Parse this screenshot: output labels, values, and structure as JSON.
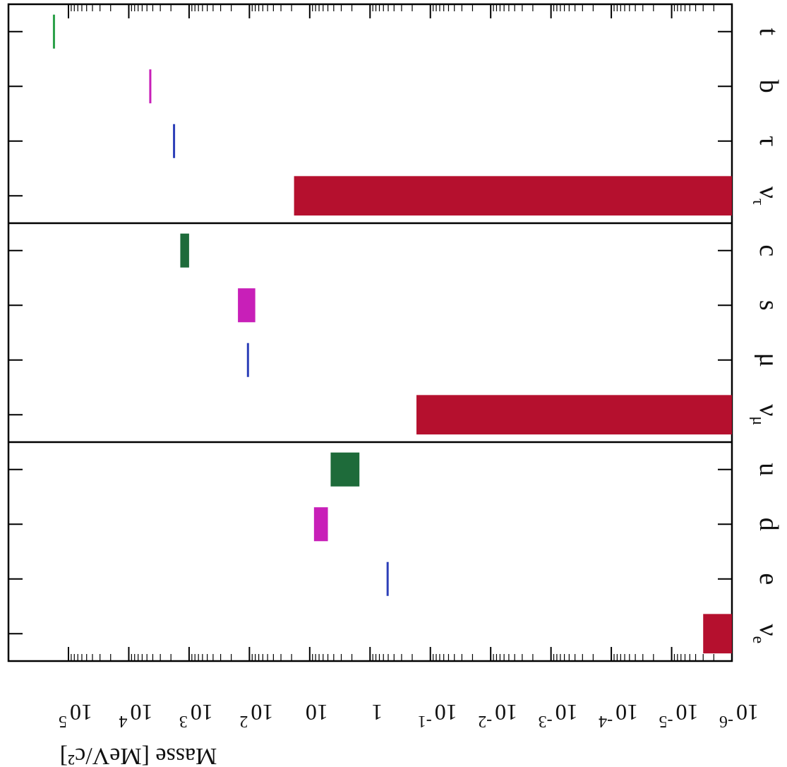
{
  "chart_data": {
    "type": "bar",
    "orientation": "rotated-180",
    "ylabel": "Masse [MeV/c²]",
    "yscale": "log",
    "ylim_exponents": [
      -6,
      5
    ],
    "y_tick_labels": [
      {
        "base": "10",
        "exp": "5"
      },
      {
        "base": "10",
        "exp": "4"
      },
      {
        "base": "10",
        "exp": "3"
      },
      {
        "base": "10",
        "exp": "2"
      },
      {
        "base": "10",
        "exp": ""
      },
      {
        "base": "1",
        "exp": ""
      },
      {
        "base": "10",
        "exp": "-1"
      },
      {
        "base": "10",
        "exp": "-2"
      },
      {
        "base": "10",
        "exp": "-3"
      },
      {
        "base": "10",
        "exp": "-4"
      },
      {
        "base": "10",
        "exp": "-5"
      },
      {
        "base": "10",
        "exp": "-6"
      }
    ],
    "categories": [
      {
        "base": "ν",
        "sub": "e"
      },
      {
        "base": "e",
        "sub": ""
      },
      {
        "base": "d",
        "sub": ""
      },
      {
        "base": "u",
        "sub": ""
      },
      {
        "base": "ν",
        "sub": "μ"
      },
      {
        "base": "μ",
        "sub": ""
      },
      {
        "base": "s",
        "sub": ""
      },
      {
        "base": "c",
        "sub": ""
      },
      {
        "base": "ν",
        "sub": "τ"
      },
      {
        "base": "τ",
        "sub": ""
      },
      {
        "base": "b",
        "sub": ""
      },
      {
        "base": "t",
        "sub": ""
      }
    ],
    "generations": 3,
    "values": [
      {
        "particle": "νe",
        "low_mev": 1e-06,
        "high_mev": 3e-06,
        "color": "#b5102e"
      },
      {
        "particle": "e",
        "low_mev": 0.511,
        "high_mev": 0.511,
        "color": "#2c3fb8"
      },
      {
        "particle": "d",
        "low_mev": 5,
        "high_mev": 8.5,
        "color": "#c81fb8"
      },
      {
        "particle": "u",
        "low_mev": 1.5,
        "high_mev": 4.5,
        "color": "#1e6b3a"
      },
      {
        "particle": "νμ",
        "low_mev": 1e-06,
        "high_mev": 0.17,
        "color": "#b5102e"
      },
      {
        "particle": "μ",
        "low_mev": 105.7,
        "high_mev": 105.7,
        "color": "#2c3fb8"
      },
      {
        "particle": "s",
        "low_mev": 80,
        "high_mev": 155,
        "color": "#c81fb8"
      },
      {
        "particle": "c",
        "low_mev": 1000,
        "high_mev": 1400,
        "color": "#1e6b3a"
      },
      {
        "particle": "ντ",
        "low_mev": 1e-06,
        "high_mev": 18.2,
        "color": "#b5102e"
      },
      {
        "particle": "τ",
        "low_mev": 1777,
        "high_mev": 1777,
        "color": "#2c3fb8"
      },
      {
        "particle": "b",
        "low_mev": 4100,
        "high_mev": 4400,
        "color": "#c81fb8"
      },
      {
        "particle": "t",
        "low_mev": 174000,
        "high_mev": 174000,
        "color": "#2aa048"
      }
    ]
  }
}
